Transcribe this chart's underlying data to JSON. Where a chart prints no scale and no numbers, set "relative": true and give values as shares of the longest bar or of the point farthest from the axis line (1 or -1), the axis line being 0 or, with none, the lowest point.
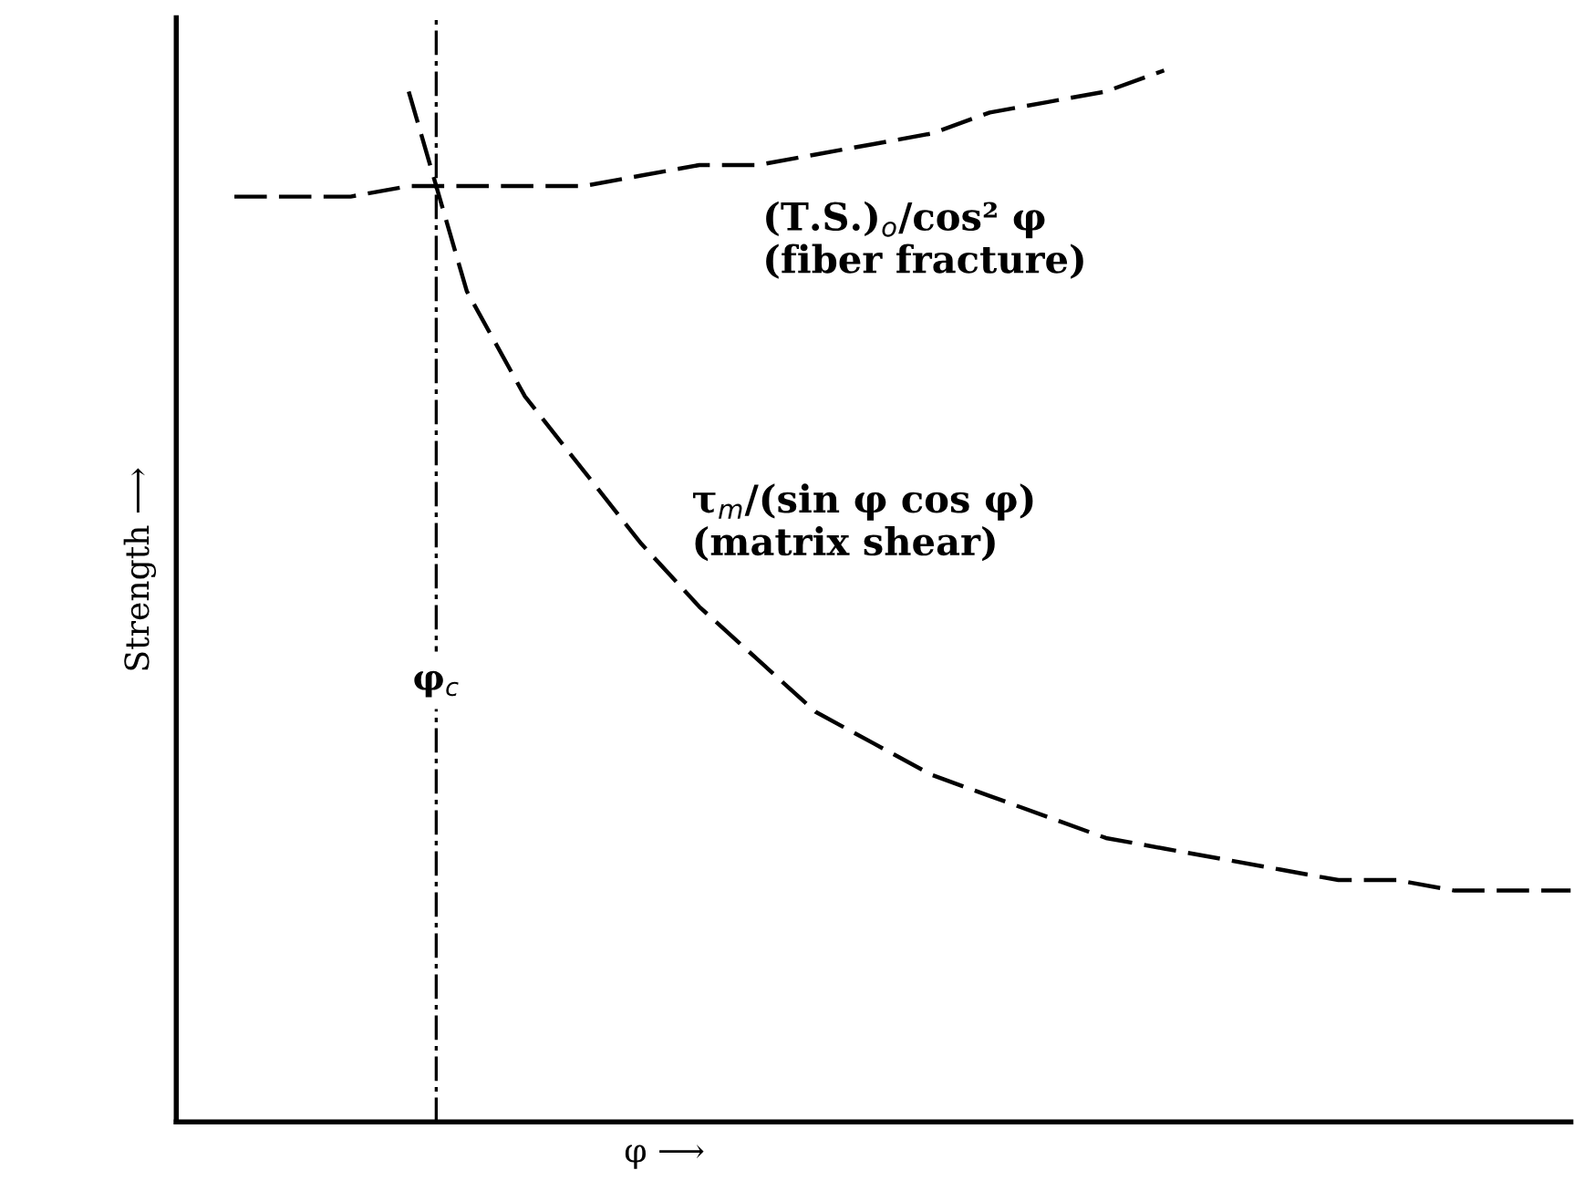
{
  "chart_data": {
    "type": "line",
    "relative": true,
    "xlabel": "φ ⟶",
    "ylabel": "Strength ⟶",
    "line_style": "dashed",
    "marker": "none",
    "grid": false,
    "legend": false,
    "tick_labels": false,
    "categories": [
      null,
      null,
      null,
      null,
      null,
      null,
      null,
      null,
      null,
      null,
      null,
      null,
      null,
      null,
      null,
      null,
      null,
      null,
      null,
      null,
      null,
      null,
      null,
      null,
      null
    ],
    "series": [
      {
        "name": "(T.S.)$_{o}$/cos² φ\n(fiber fracture)",
        "color": "#000000",
        "values": [
          null,
          0.88,
          0.88,
          0.88,
          0.89,
          0.89,
          0.89,
          0.89,
          0.9,
          0.91,
          0.91,
          0.92,
          0.93,
          0.94,
          0.96,
          0.97,
          0.98,
          1.0,
          null,
          null,
          null,
          null,
          null,
          null,
          null
        ]
      },
      {
        "name": "τ$_{m}$/(sin φ cos φ)\n(matrix shear)",
        "color": "#000000",
        "values": [
          null,
          null,
          null,
          null,
          0.98,
          0.79,
          0.69,
          0.62,
          0.55,
          0.49,
          0.44,
          0.39,
          0.36,
          0.33,
          0.31,
          0.29,
          0.27,
          0.26,
          0.25,
          0.24,
          0.23,
          0.23,
          0.22,
          0.22,
          0.22
        ]
      }
    ],
    "annotations": [
      "φ$_{c}$"
    ]
  }
}
